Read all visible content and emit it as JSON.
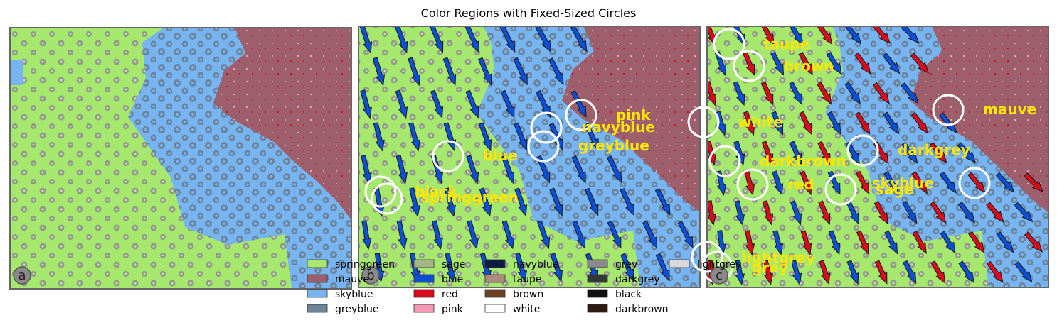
{
  "figure_title": "Color Regions with Fixed-Sized Circles",
  "colors": {
    "springgreen": "#a6e86e",
    "mauve": "#9e5f6d",
    "skyblue": "#76b4f2",
    "greyblue": "#6e8399",
    "sage": "#a4b687",
    "blue": "#0a4fd6",
    "red": "#d90a1c",
    "pink": "#f29ab4",
    "navyblue": "#0c1c45",
    "taupe": "#ae8a7e",
    "brown": "#6b4324",
    "white": "#ffffff",
    "grey": "#8a8a8a",
    "darkgrey": "#333838",
    "black": "#111111",
    "darkbrown": "#2f1a0f",
    "lightgrey": "#d9d9d9"
  },
  "legend": [
    {
      "name": "springgreen",
      "color": "#a6e86e"
    },
    {
      "name": "mauve",
      "color": "#9e5f6d"
    },
    {
      "name": "skyblue",
      "color": "#76b4f2"
    },
    {
      "name": "greyblue",
      "color": "#6e8399"
    },
    {
      "name": "sage",
      "color": "#a4b687"
    },
    {
      "name": "blue",
      "color": "#0a4fd6"
    },
    {
      "name": "red",
      "color": "#d90a1c"
    },
    {
      "name": "pink",
      "color": "#f29ab4"
    },
    {
      "name": "navyblue",
      "color": "#0c1c45"
    },
    {
      "name": "taupe",
      "color": "#ae8a7e"
    },
    {
      "name": "brown",
      "color": "#6b4324"
    },
    {
      "name": "white",
      "color": "#ffffff"
    },
    {
      "name": "grey",
      "color": "#8a8a8a"
    },
    {
      "name": "darkgrey",
      "color": "#333838"
    },
    {
      "name": "black",
      "color": "#111111"
    },
    {
      "name": "darkbrown",
      "color": "#2f1a0f"
    },
    {
      "name": "lightgrey",
      "color": "#d9d9d9"
    }
  ],
  "panels": [
    {
      "tag": "a",
      "labels": []
    },
    {
      "tag": "b",
      "labels": [
        "pink",
        "navyblue",
        "greyblue",
        "blue",
        "black",
        "springgreen"
      ]
    },
    {
      "tag": "c",
      "labels": [
        "taupe",
        "brown",
        "mauve",
        "white",
        "darkgrey",
        "darkbrown",
        "red",
        "skyblue",
        "sage",
        "lightgrey",
        "grey"
      ]
    }
  ],
  "chart_data": {
    "type": "other",
    "title": "Color Regions with Fixed-Sized Circles",
    "legend_placement": "lower-center",
    "legend_columns": 5
  }
}
